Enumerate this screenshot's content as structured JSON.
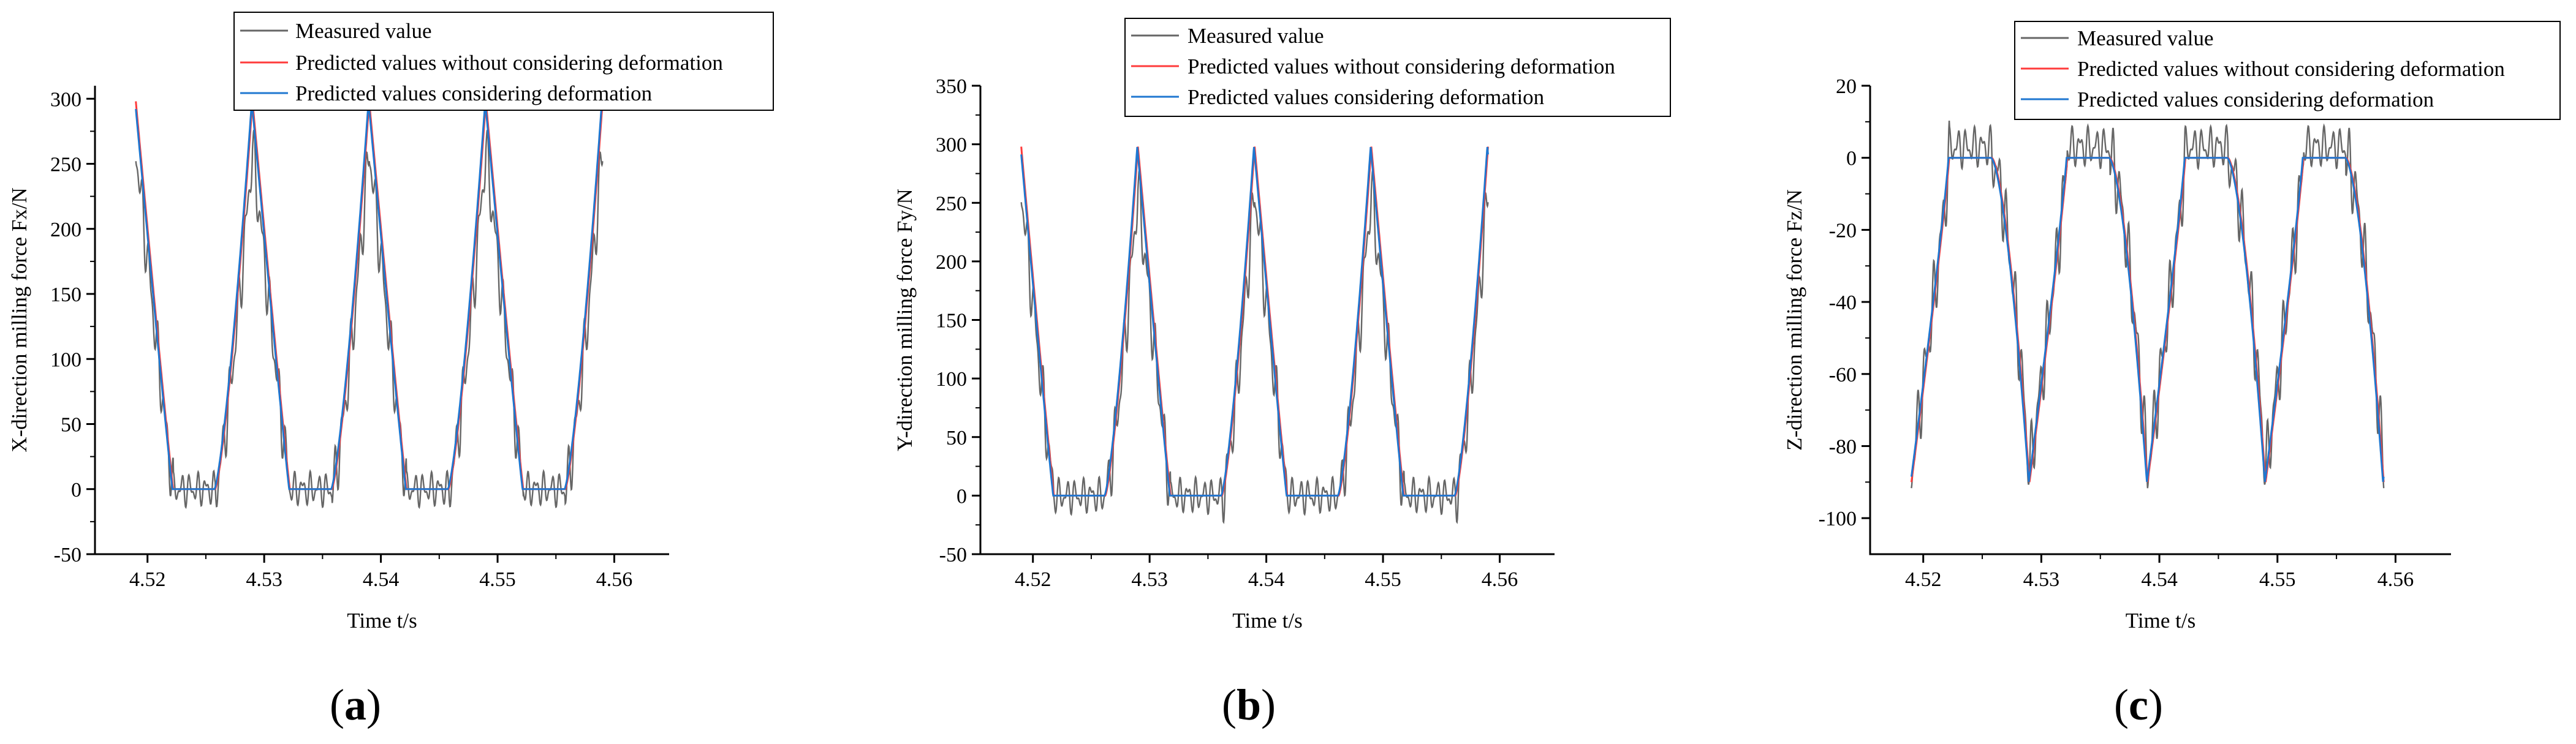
{
  "chart_data": [
    {
      "type": "line",
      "panel_label": "a",
      "xlabel": "Time t/s",
      "ylabel": "X-direction milling force Fx/N",
      "xlim": [
        4.5155,
        4.5647
      ],
      "ylim": [
        -50,
        310
      ],
      "x_ticks": [
        "4.52",
        "4.53",
        "4.54",
        "4.55",
        "4.56"
      ],
      "y_ticks": [
        "-50",
        "0",
        "50",
        "100",
        "150",
        "200",
        "250",
        "300"
      ],
      "legend": [
        "Measured value",
        "Predicted values without considering deformation",
        "Predicted values considering deformation"
      ],
      "period": 0.01,
      "x_start": 4.519,
      "x_end": 4.559,
      "model": {
        "peak": 298,
        "floor": 0,
        "flat": 0.0036,
        "ring": 14
      }
    },
    {
      "type": "line",
      "panel_label": "b",
      "xlabel": "Time t/s",
      "ylabel": "Y-direction milling force Fy/N",
      "xlim": [
        4.5155,
        4.5647
      ],
      "ylim": [
        -50,
        350
      ],
      "x_ticks": [
        "4.52",
        "4.53",
        "4.54",
        "4.55",
        "4.56"
      ],
      "y_ticks": [
        "-50",
        "0",
        "50",
        "100",
        "150",
        "200",
        "250",
        "300",
        "350"
      ],
      "legend": [
        "Measured value",
        "Predicted values without considering deformation",
        "Predicted values considering deformation"
      ],
      "period": 0.01,
      "x_start": 4.519,
      "x_end": 4.559,
      "model": {
        "peak": 298,
        "floor": 0,
        "flat": 0.0044,
        "ring": 16
      }
    },
    {
      "type": "line",
      "panel_label": "c",
      "xlabel": "Time t/s",
      "ylabel": "Z-direction milling force Fz/N",
      "xlim": [
        4.5155,
        4.5647
      ],
      "ylim": [
        -110,
        20
      ],
      "x_ticks": [
        "4.52",
        "4.53",
        "4.54",
        "4.55",
        "4.56"
      ],
      "y_ticks": [
        "-100",
        "-80",
        "-60",
        "-40",
        "-20",
        "0",
        "20"
      ],
      "legend": [
        "Measured value",
        "Predicted values without considering deformation",
        "Predicted values considering deformation"
      ],
      "period": 0.01,
      "x_start": 4.519,
      "x_end": 4.559,
      "model": {
        "peak": -90,
        "floor": 0,
        "flat": 0.0036,
        "ring": 6
      }
    }
  ],
  "colors": {
    "measured": "#666666",
    "pred_no_deform": "#ff3b3b",
    "pred_deform": "#1f77d0"
  }
}
